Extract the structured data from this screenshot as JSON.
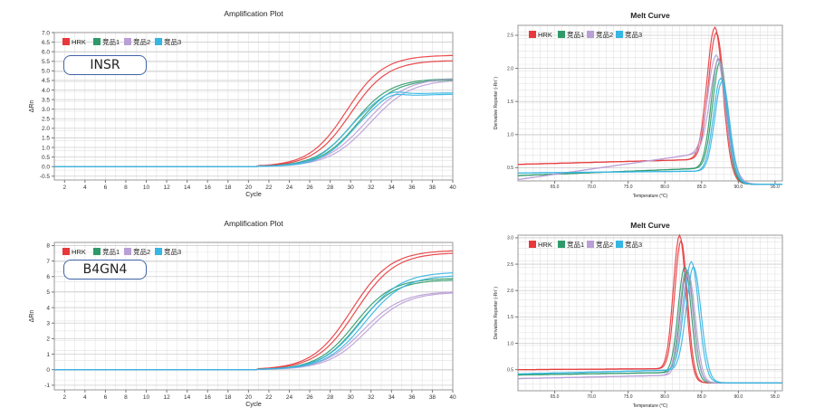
{
  "legend_colors": {
    "HRK": "#e8383c",
    "竞品1": "#2e9a6a",
    "竞品2": "#b99fd6",
    "竞品3": "#35b6e3"
  },
  "chart_data": [
    {
      "id": "amp-insr",
      "type": "line",
      "title": "Amplification Plot",
      "xlabel": "Cycle",
      "ylabel": "ΔRn",
      "gene_label": "INSR",
      "xlim": [
        1,
        40
      ],
      "ylim": [
        -0.7,
        7.0
      ],
      "xticks": [
        2,
        4,
        6,
        8,
        10,
        12,
        14,
        16,
        18,
        20,
        22,
        24,
        26,
        28,
        30,
        32,
        34,
        36,
        38,
        40
      ],
      "yticks": [
        -0.5,
        0.0,
        0.5,
        1.0,
        1.5,
        2.0,
        2.5,
        3.0,
        3.5,
        4.0,
        4.5,
        5.0,
        5.5,
        6.0,
        6.5,
        7.0
      ],
      "ytick_labels": [
        "-0.5",
        "0.0",
        "0.5",
        "1.0",
        "1.5",
        "2.0",
        "2.5",
        "3.0",
        "3.5",
        "4.0",
        "4.5",
        "5.0",
        "5.5",
        "6.0",
        "6.5",
        "7.0"
      ],
      "legend": [
        "HRK",
        "竞品1",
        "竞品2",
        "竞品3"
      ],
      "curves": [
        {
          "name": "HRK",
          "color": "#e8383c",
          "x0": 29.8,
          "k": 0.55,
          "base": 0,
          "curves": [
            {
              "max": 5.82,
              "off": -0.2
            },
            {
              "max": 5.55,
              "off": 0.2
            }
          ]
        },
        {
          "name": "竞品1",
          "color": "#2e9a6a",
          "x0": 30.5,
          "k": 0.55,
          "base": 0,
          "curves": [
            {
              "max": 4.6,
              "off": -0.2
            },
            {
              "max": 4.55,
              "off": 0.2
            }
          ]
        },
        {
          "name": "竞品2",
          "color": "#b99fd6",
          "x0": 31.5,
          "k": 0.5,
          "base": 0,
          "curves": [
            {
              "max": 4.65,
              "off": 0
            },
            {
              "max": 4.55,
              "off": 0.4
            }
          ]
        },
        {
          "name": "竞品3",
          "color": "#35b6e3",
          "x0": 30.0,
          "k": 0.62,
          "base": 0,
          "curves": [
            {
              "max": 3.85,
              "off": -0.3
            },
            {
              "max": 3.78,
              "off": 0.2
            }
          ],
          "hump": 0.25
        }
      ]
    },
    {
      "id": "melt-insr",
      "type": "line",
      "title": "Melt Curve",
      "xlabel": "Temperature (°C)",
      "ylabel": "Derivative Reporter (-Rn' )",
      "xlim": [
        60,
        96
      ],
      "ylim": [
        0.3,
        2.65
      ],
      "xticks": [
        65,
        70,
        75,
        80,
        85,
        90,
        95
      ],
      "xtick_labels": [
        "65.0",
        "70.0",
        "75.0",
        "80.0",
        "85.0",
        "90.0",
        "95.0"
      ],
      "yticks": [
        0.5,
        1.0,
        1.5,
        2.0,
        2.5
      ],
      "ytick_labels": [
        "0.5",
        "1.0",
        "1.5",
        "2.0",
        "2.5"
      ],
      "legend": [
        "HRK",
        "竞品1",
        "竞品2",
        "竞品3"
      ],
      "curves": [
        {
          "name": "HRK",
          "color": "#e8383c",
          "base0": 0.55,
          "base1": 0.63,
          "peak": 2.62,
          "center": 86.8,
          "w": 1.5,
          "curves": [
            {
              "s": 1.0,
              "off": 0
            },
            {
              "s": 0.96,
              "off": 0.2
            }
          ]
        },
        {
          "name": "竞品1",
          "color": "#2e9a6a",
          "base0": 0.38,
          "base1": 0.5,
          "peak": 2.15,
          "center": 87.3,
          "w": 1.4,
          "curves": [
            {
              "s": 1.0,
              "off": 0
            },
            {
              "s": 0.97,
              "off": 0.2
            }
          ]
        },
        {
          "name": "竞品2",
          "color": "#b99fd6",
          "base0": 0.32,
          "base1": 0.75,
          "peak": 2.2,
          "center": 87.0,
          "w": 1.6,
          "curves": [
            {
              "s": 1.0,
              "off": 0
            },
            {
              "s": 0.95,
              "off": 0.3
            }
          ]
        },
        {
          "name": "竞品3",
          "color": "#35b6e3",
          "base0": 0.42,
          "base1": 0.45,
          "peak": 1.85,
          "center": 87.6,
          "w": 1.4,
          "curves": [
            {
              "s": 1.0,
              "off": 0
            },
            {
              "s": 0.97,
              "off": 0.2
            }
          ]
        }
      ]
    },
    {
      "id": "amp-b4gn4",
      "type": "line",
      "title": "Amplification Plot",
      "xlabel": "Cycle",
      "ylabel": "ΔRn",
      "gene_label": "B4GN4",
      "xlim": [
        1,
        40
      ],
      "ylim": [
        -1.3,
        8.2
      ],
      "xticks": [
        2,
        4,
        6,
        8,
        10,
        12,
        14,
        16,
        18,
        20,
        22,
        24,
        26,
        28,
        30,
        32,
        34,
        36,
        38,
        40
      ],
      "yticks": [
        -1,
        0,
        1,
        2,
        3,
        4,
        5,
        6,
        7,
        8
      ],
      "ytick_labels": [
        "-1",
        "0",
        "1",
        "2",
        "3",
        "4",
        "5",
        "6",
        "7",
        "8"
      ],
      "legend": [
        "HRK",
        "竞品1",
        "竞品2",
        "竞品3"
      ],
      "curves": [
        {
          "name": "HRK",
          "color": "#e8383c",
          "x0": 30.3,
          "k": 0.52,
          "base": 0,
          "curves": [
            {
              "max": 7.7,
              "off": -0.2
            },
            {
              "max": 7.55,
              "off": 0.2
            }
          ]
        },
        {
          "name": "竞品1",
          "color": "#2e9a6a",
          "x0": 30.5,
          "k": 0.55,
          "base": 0,
          "curves": [
            {
              "max": 5.9,
              "off": -0.1
            },
            {
              "max": 5.8,
              "off": 0.2
            }
          ]
        },
        {
          "name": "竞品2",
          "color": "#b99fd6",
          "x0": 31.2,
          "k": 0.52,
          "base": 0,
          "curves": [
            {
              "max": 5.05,
              "off": 0
            },
            {
              "max": 5.0,
              "off": 0.4
            }
          ]
        },
        {
          "name": "竞品3",
          "color": "#35b6e3",
          "x0": 31.2,
          "k": 0.52,
          "base": 0,
          "curves": [
            {
              "max": 6.3,
              "off": -0.1
            },
            {
              "max": 6.1,
              "off": 0.2
            }
          ]
        }
      ]
    },
    {
      "id": "melt-b4gn4",
      "type": "line",
      "title": "Melt Curve",
      "xlabel": "Temperature (°C)",
      "ylabel": "Derivative Reporter (-Rn' )",
      "xlim": [
        60,
        96
      ],
      "ylim": [
        0.1,
        3.05
      ],
      "xticks": [
        65,
        70,
        75,
        80,
        85,
        90,
        95
      ],
      "xtick_labels": [
        "65.0",
        "70.0",
        "75.0",
        "80.0",
        "85.0",
        "90.0",
        "95.0"
      ],
      "yticks": [
        0.5,
        1.0,
        1.5,
        2.0,
        2.5,
        3.0
      ],
      "ytick_labels": [
        "0.5",
        "1.0",
        "1.5",
        "2.0",
        "2.5",
        "3.0"
      ],
      "legend": [
        "HRK",
        "竞品1",
        "竞品2",
        "竞品3"
      ],
      "curves": [
        {
          "name": "HRK",
          "color": "#e8383c",
          "base0": 0.5,
          "base1": 0.52,
          "peak": 3.05,
          "center": 82.0,
          "w": 1.2,
          "curves": [
            {
              "s": 1.0,
              "off": 0
            },
            {
              "s": 0.96,
              "off": 0.2
            }
          ]
        },
        {
          "name": "竞品1",
          "color": "#2e9a6a",
          "base0": 0.4,
          "base1": 0.45,
          "peak": 2.45,
          "center": 82.7,
          "w": 1.25,
          "curves": [
            {
              "s": 1.0,
              "off": 0
            },
            {
              "s": 0.97,
              "off": 0.3
            }
          ]
        },
        {
          "name": "竞品2",
          "color": "#b99fd6",
          "base0": 0.33,
          "base1": 0.4,
          "peak": 2.4,
          "center": 82.9,
          "w": 1.3,
          "curves": [
            {
              "s": 1.0,
              "off": 0
            },
            {
              "s": 0.96,
              "off": 0.3
            }
          ]
        },
        {
          "name": "竞品3",
          "color": "#35b6e3",
          "base0": 0.42,
          "base1": 0.5,
          "peak": 2.55,
          "center": 83.6,
          "w": 1.4,
          "curves": [
            {
              "s": 1.0,
              "off": 0
            },
            {
              "s": 0.95,
              "off": 0.3
            }
          ]
        }
      ]
    }
  ]
}
